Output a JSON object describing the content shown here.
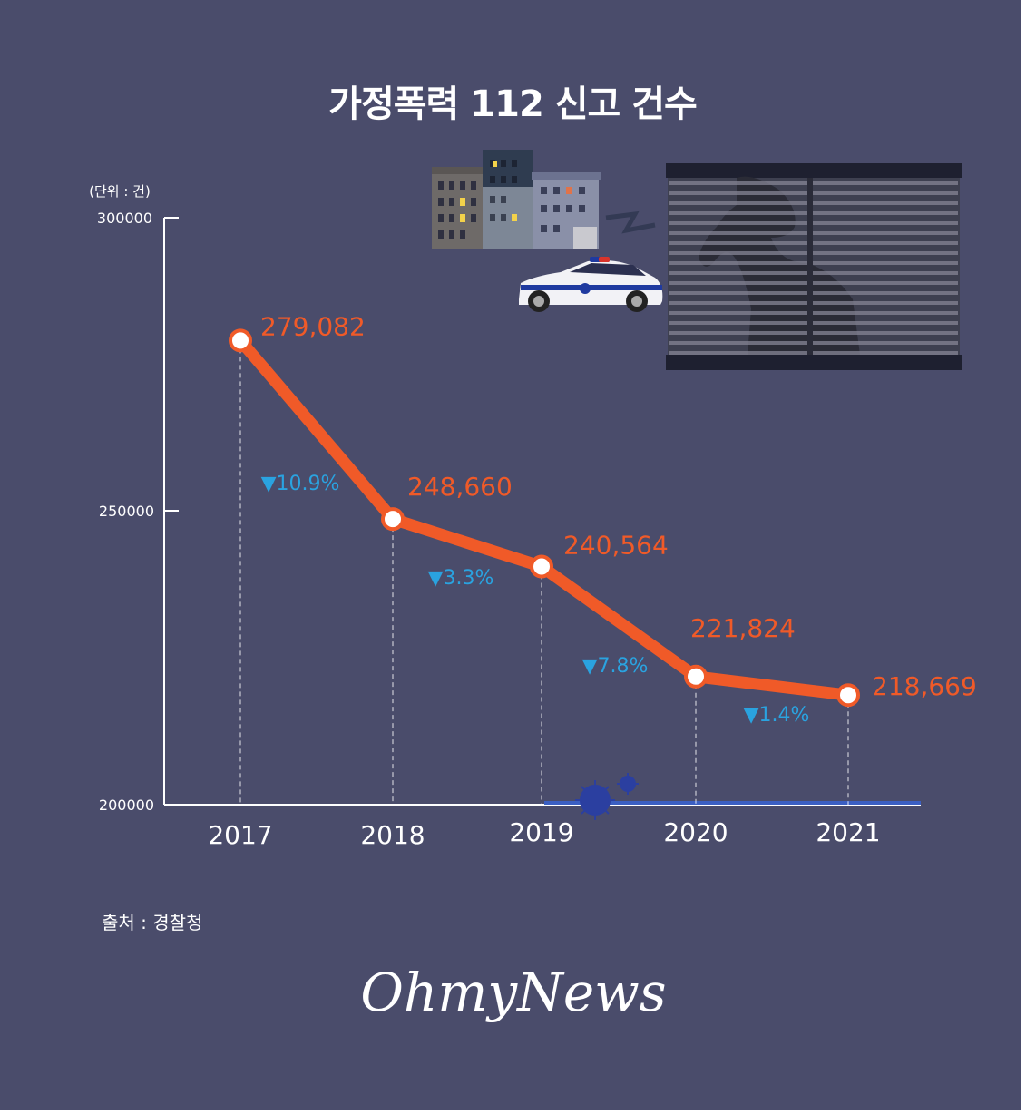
{
  "title": "가정폭력 112 신고 건수",
  "unit_label": "(단위 : 건)",
  "source": "출처 : 경찰청",
  "logo_text": "OhmyNews",
  "chart_data": {
    "type": "line",
    "title": "가정폭력 112 신고 건수",
    "categories": [
      "2017",
      "2018",
      "2019",
      "2020",
      "2021"
    ],
    "values": [
      279082,
      248660,
      240564,
      221824,
      218669
    ],
    "value_labels": [
      "279,082",
      "248,660",
      "240,564",
      "221,824",
      "218,669"
    ],
    "changes": [
      "▼10.9%",
      "▼3.3%",
      "▼7.8%",
      "▼1.4%"
    ],
    "ylim": [
      200000,
      300000
    ],
    "yticks": [
      "200000",
      "250000",
      "300000"
    ],
    "xlabel": "",
    "ylabel": "",
    "grid": false,
    "line_color": "#f05a28",
    "change_color": "#2aa3e0"
  },
  "illustrations": [
    "buildings-illustration",
    "police-car-illustration",
    "window-silhouette-illustration",
    "virus-icon"
  ],
  "colors": {
    "background": "#4a4c6b",
    "line": "#f05a28",
    "change": "#2aa3e0",
    "axis": "#ffffff"
  }
}
